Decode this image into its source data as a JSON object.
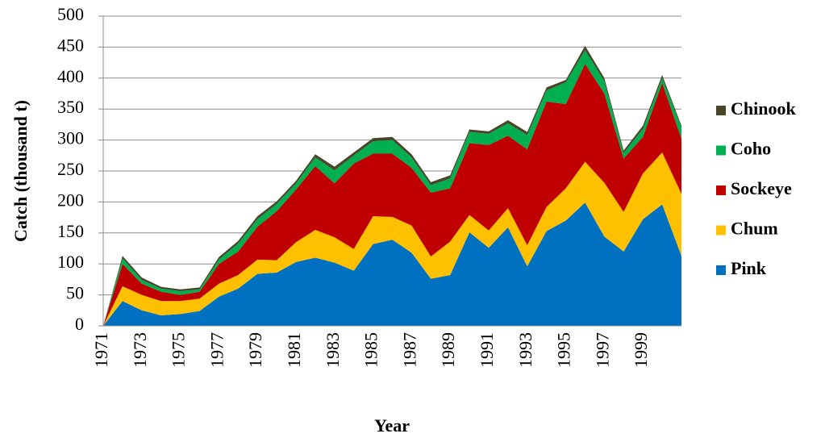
{
  "chart_data": {
    "type": "stacked-area",
    "xlabel": "Year",
    "ylabel": "Catch (thousand t)",
    "categories": [
      "1971",
      null,
      "1973",
      null,
      "1975",
      null,
      "1977",
      null,
      "1979",
      null,
      "1981",
      null,
      "1983",
      null,
      "1985",
      null,
      "1987",
      null,
      "1989",
      null,
      "1991",
      null,
      "1993",
      null,
      "1995",
      null,
      "1997",
      null,
      "1999",
      null,
      null
    ],
    "series": [
      {
        "name": "Pink",
        "color": "#0070c0",
        "values": [
          0,
          40,
          25,
          17,
          19,
          24,
          47,
          60,
          84,
          86,
          103,
          110,
          102,
          89,
          132,
          139,
          118,
          76,
          82,
          151,
          126,
          159,
          96,
          153,
          170,
          199,
          144,
          120,
          172,
          196,
          113
        ]
      },
      {
        "name": "Chum",
        "color": "#ffc000",
        "values": [
          0,
          24,
          25,
          23,
          21,
          20,
          21,
          22,
          23,
          20,
          32,
          45,
          41,
          35,
          45,
          37,
          44,
          36,
          54,
          28,
          28,
          31,
          34,
          39,
          52,
          66,
          87,
          64,
          74,
          84,
          100
        ]
      },
      {
        "name": "Sockeye",
        "color": "#c00000",
        "values": [
          0,
          36,
          18,
          15,
          10,
          11,
          32,
          38,
          53,
          79,
          85,
          103,
          87,
          138,
          101,
          102,
          93,
          103,
          86,
          116,
          138,
          117,
          155,
          170,
          136,
          158,
          144,
          86,
          59,
          112,
          89
        ]
      },
      {
        "name": "Coho",
        "color": "#00b050",
        "values": [
          0,
          9,
          6,
          5,
          6,
          4,
          7,
          13,
          12,
          12,
          10,
          14,
          21,
          13,
          20,
          22,
          17,
          12,
          16,
          18,
          18,
          20,
          23,
          18,
          35,
          22,
          20,
          9,
          13,
          8,
          18
        ]
      },
      {
        "name": "Chinook",
        "color": "#494529",
        "values": [
          0,
          4,
          4,
          3,
          3,
          3,
          4,
          4,
          5,
          4,
          4,
          5,
          6,
          5,
          5,
          5,
          5,
          5,
          5,
          4,
          4,
          5,
          5,
          5,
          4,
          7,
          5,
          4,
          5,
          5,
          3
        ]
      }
    ],
    "ylim": [
      0,
      500
    ],
    "yticks": [
      0,
      50,
      100,
      150,
      200,
      250,
      300,
      350,
      400,
      450,
      500
    ],
    "grid": true,
    "legend": "right"
  }
}
